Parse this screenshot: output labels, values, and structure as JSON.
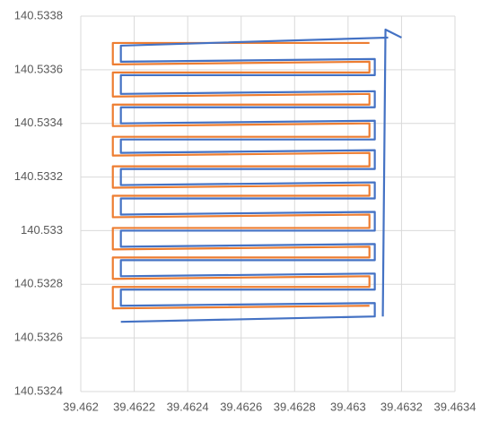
{
  "chart_data": {
    "type": "line",
    "xlim": [
      39.462,
      39.4634
    ],
    "xticks": [
      39.462,
      39.4622,
      39.4624,
      39.4626,
      39.4628,
      39.463,
      39.4632,
      39.4634
    ],
    "ylim": [
      140.5324,
      140.5338
    ],
    "yticks": [
      140.5324,
      140.5326,
      140.5328,
      140.533,
      140.5332,
      140.5334,
      140.5336,
      140.5338
    ],
    "grid": true,
    "series": [
      {
        "color": "#ED7D31",
        "x": [
          39.46308,
          39.46212,
          39.46212,
          39.46308,
          39.46308,
          39.46212,
          39.46212,
          39.46308,
          39.46308,
          39.46212,
          39.46212,
          39.46308,
          39.46308,
          39.46212,
          39.46212,
          39.46308,
          39.46308,
          39.46212,
          39.46212,
          39.46308,
          39.46308,
          39.46212,
          39.46212,
          39.46308,
          39.46308,
          39.46212,
          39.46212,
          39.46308,
          39.46308,
          39.46212,
          39.46212,
          39.46308,
          39.46308,
          39.46212,
          39.46212,
          39.46308
        ],
        "values": [
          140.5337,
          140.5337,
          140.53362,
          140.53363,
          140.53359,
          140.53359,
          140.5335,
          140.53351,
          140.53347,
          140.53347,
          140.53339,
          140.5334,
          140.53335,
          140.53335,
          140.53328,
          140.53329,
          140.53324,
          140.53324,
          140.53316,
          140.53317,
          140.53313,
          140.53313,
          140.53305,
          140.53306,
          140.53301,
          140.53301,
          140.53293,
          140.53294,
          140.5329,
          140.5329,
          140.53282,
          140.53283,
          140.53279,
          140.53279,
          140.53271,
          140.53272
        ]
      },
      {
        "color": "#4472C4",
        "x": [
          39.46315,
          39.46215,
          39.46215,
          39.4631,
          39.4631,
          39.46215,
          39.46215,
          39.4631,
          39.4631,
          39.46215,
          39.46215,
          39.4631,
          39.4631,
          39.46215,
          39.46215,
          39.4631,
          39.4631,
          39.46215,
          39.46215,
          39.4631,
          39.4631,
          39.46215,
          39.46215,
          39.4631,
          39.4631,
          39.46215,
          39.46215,
          39.4631,
          39.4631,
          39.46215,
          39.46215,
          39.4631,
          39.4631,
          39.46215,
          39.46215,
          39.4631,
          39.4631,
          39.46215,
          null,
          39.46313,
          39.46314,
          39.4632
        ],
        "values": [
          140.53372,
          140.53369,
          140.53363,
          140.53364,
          140.53358,
          140.53358,
          140.53351,
          140.53352,
          140.53346,
          140.53346,
          140.5334,
          140.53341,
          140.53334,
          140.53334,
          140.53329,
          140.5333,
          140.53323,
          140.53323,
          140.53317,
          140.53318,
          140.53312,
          140.53312,
          140.53306,
          140.53307,
          140.533,
          140.533,
          140.53294,
          140.53295,
          140.53289,
          140.53289,
          140.53283,
          140.53284,
          140.53278,
          140.53278,
          140.53272,
          140.53273,
          140.53268,
          140.53266,
          null,
          140.53268,
          140.53375,
          140.53372
        ]
      }
    ]
  }
}
